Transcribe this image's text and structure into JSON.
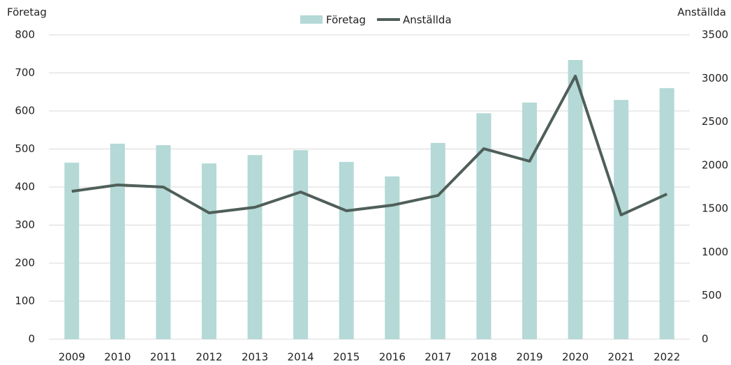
{
  "chart_data": {
    "type": "bar-line",
    "y_label": "Företag",
    "y2_label": "Anställda",
    "categories": [
      "2009",
      "2010",
      "2011",
      "2012",
      "2013",
      "2014",
      "2015",
      "2016",
      "2017",
      "2018",
      "2019",
      "2020",
      "2021",
      "2022"
    ],
    "series": [
      {
        "name": "Företag",
        "type": "bar",
        "color": "#b4d9d6",
        "values": [
          464,
          514,
          510,
          462,
          484,
          497,
          466,
          428,
          516,
          594,
          622,
          734,
          629,
          660
        ]
      },
      {
        "name": "Anställda",
        "type": "line",
        "axis": "y2",
        "color": "#4f5f5a",
        "values": [
          1701,
          1774,
          1750,
          1453,
          1517,
          1693,
          1477,
          1541,
          1653,
          2191,
          2047,
          3026,
          1429,
          1669
        ]
      }
    ],
    "ylim": [
      0,
      800
    ],
    "yticks": [
      0,
      100,
      200,
      300,
      400,
      500,
      600,
      700,
      800
    ],
    "y2lim": [
      0,
      3500
    ],
    "y2ticks": [
      0,
      500,
      1000,
      1500,
      2000,
      2500,
      3000,
      3500
    ],
    "grid": true,
    "legend": "top"
  }
}
